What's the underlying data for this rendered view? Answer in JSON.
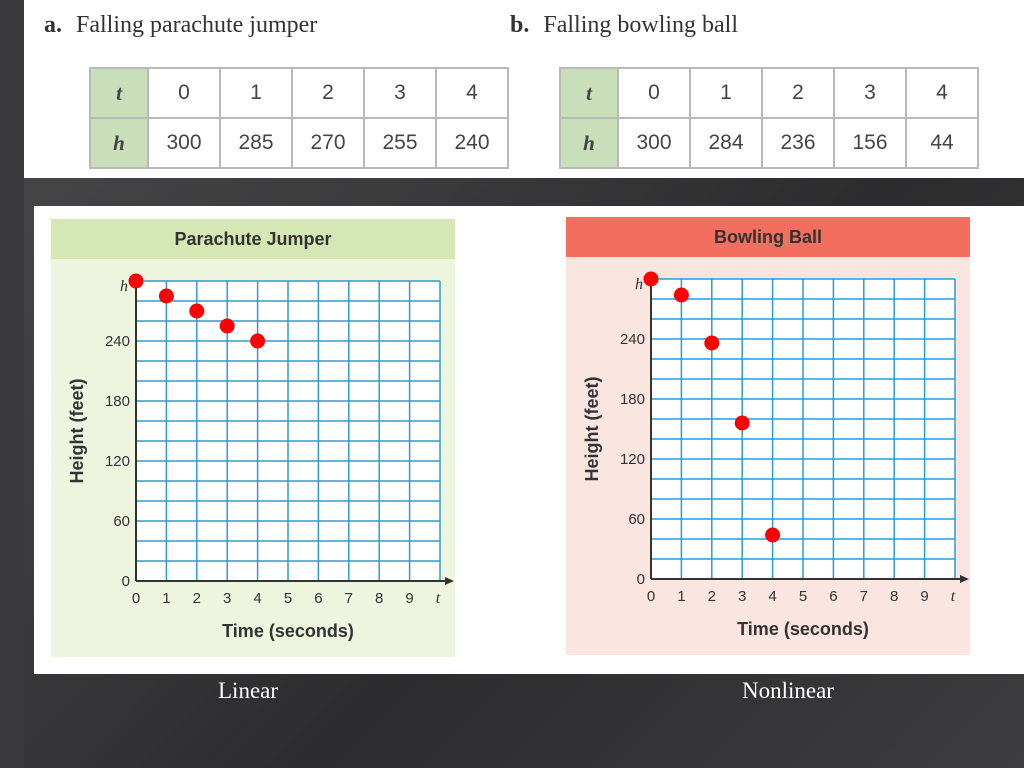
{
  "tables": {
    "a": {
      "letter": "a.",
      "title": "Falling parachute jumper",
      "row1_label": "t",
      "row2_label": "h",
      "t": [
        "0",
        "1",
        "2",
        "3",
        "4"
      ],
      "h": [
        "300",
        "285",
        "270",
        "255",
        "240"
      ]
    },
    "b": {
      "letter": "b.",
      "title": "Falling bowling ball",
      "row1_label": "t",
      "row2_label": "h",
      "t": [
        "0",
        "1",
        "2",
        "3",
        "4"
      ],
      "h": [
        "300",
        "284",
        "236",
        "156",
        "44"
      ]
    }
  },
  "captions": {
    "left": "Linear",
    "right": "Nonlinear"
  },
  "chart_data": [
    {
      "type": "scatter",
      "title": "Parachute Jumper",
      "xlabel": "Time (seconds)",
      "ylabel": "Height (feet)",
      "x_axis_var": "t",
      "y_axis_var": "h",
      "xlim": [
        0,
        10
      ],
      "ylim": [
        0,
        300
      ],
      "x_ticks": [
        0,
        1,
        2,
        3,
        4,
        5,
        6,
        7,
        8,
        9
      ],
      "y_ticks": [
        0,
        60,
        120,
        180,
        240
      ],
      "grid": true,
      "header_color": "#d5e7b5",
      "bg_color": "#edf5df",
      "point_color": "#ff0000",
      "series": [
        {
          "x": [
            0,
            1,
            2,
            3,
            4
          ],
          "y": [
            300,
            285,
            270,
            255,
            240
          ]
        }
      ]
    },
    {
      "type": "scatter",
      "title": "Bowling Ball",
      "xlabel": "Time (seconds)",
      "ylabel": "Height (feet)",
      "x_axis_var": "t",
      "y_axis_var": "h",
      "xlim": [
        0,
        10
      ],
      "ylim": [
        0,
        300
      ],
      "x_ticks": [
        0,
        1,
        2,
        3,
        4,
        5,
        6,
        7,
        8,
        9
      ],
      "y_ticks": [
        0,
        60,
        120,
        180,
        240
      ],
      "grid": true,
      "header_color": "#f26e5e",
      "bg_color": "#fbe5e0",
      "point_color": "#ff0000",
      "series": [
        {
          "x": [
            0,
            1,
            2,
            3,
            4
          ],
          "y": [
            300,
            284,
            236,
            156,
            44
          ]
        }
      ]
    }
  ]
}
